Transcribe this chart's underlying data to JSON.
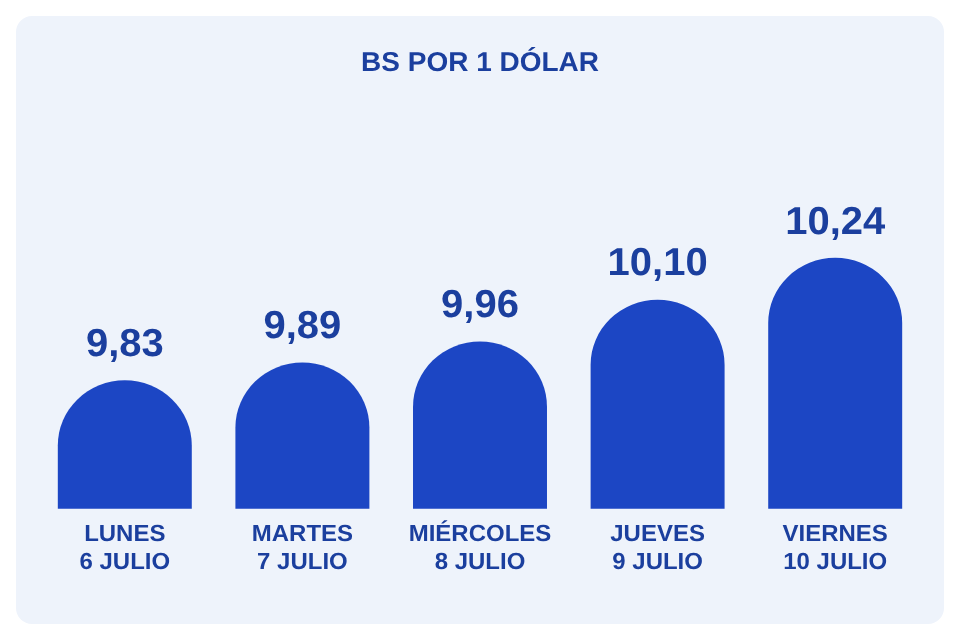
{
  "chart_data": {
    "type": "bar",
    "title": "BS POR 1 DÓLAR",
    "categories": [
      "LUNES\n6 JULIO",
      "MARTES\n7 JULIO",
      "MIÉRCOLES\n8 JULIO",
      "JUEVES\n9 JULIO",
      "VIERNES\n10 JULIO"
    ],
    "values": [
      9.83,
      9.89,
      9.96,
      10.1,
      10.24
    ],
    "value_labels": [
      "9,83",
      "9,89",
      "9,96",
      "10,10",
      "10,24"
    ],
    "color": "#1c46c4",
    "grid": false,
    "legend": false,
    "tick_labels": "x"
  }
}
